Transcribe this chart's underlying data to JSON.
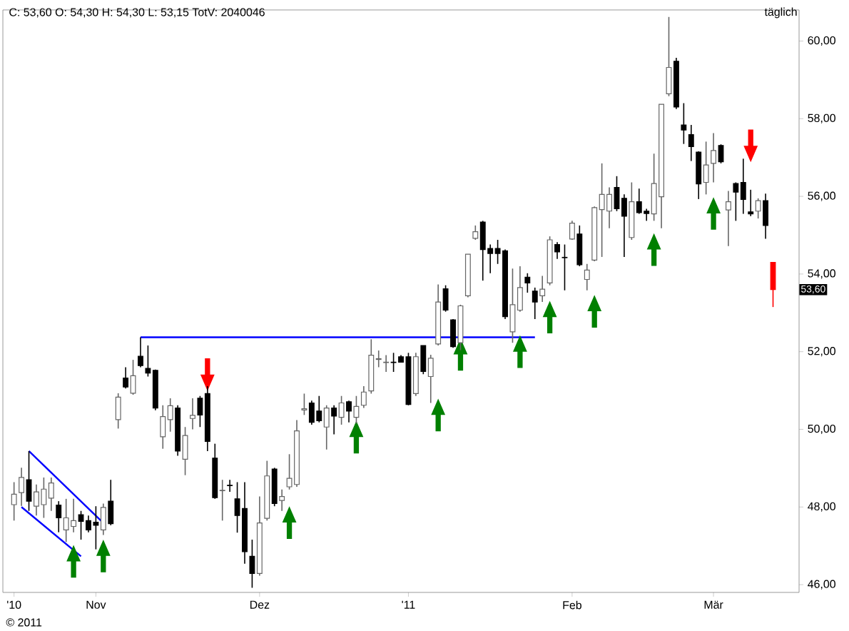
{
  "chart_data": {
    "type": "candlestick",
    "title": "C: 53,60 O: 54,30 H: 54,30 L: 53,15 TotV: 2040046",
    "annotations": [
      "täglich",
      "© 2011",
      "53,60"
    ],
    "categories": [
      "'10",
      null,
      null,
      null,
      null,
      null,
      null,
      null,
      null,
      null,
      null,
      "Nov",
      null,
      null,
      null,
      null,
      null,
      null,
      null,
      null,
      null,
      null,
      null,
      null,
      null,
      null,
      null,
      null,
      null,
      null,
      null,
      null,
      null,
      "Dez",
      null,
      null,
      null,
      null,
      null,
      null,
      null,
      null,
      null,
      null,
      null,
      null,
      null,
      null,
      null,
      null,
      null,
      null,
      null,
      "'11",
      null,
      null,
      null,
      null,
      null,
      null,
      null,
      null,
      null,
      null,
      null,
      null,
      null,
      null,
      null,
      null,
      null,
      null,
      null,
      null,
      null,
      "Feb",
      null,
      null,
      null,
      null,
      null,
      null,
      null,
      null,
      null,
      null,
      null,
      null,
      null,
      null,
      null,
      null,
      null,
      null,
      "Mär",
      null,
      null,
      null,
      null,
      null,
      null,
      null,
      null
    ],
    "ohlc": [
      [
        48.06,
        48.64,
        47.65,
        48.33
      ],
      [
        48.37,
        49.01,
        48.03,
        48.76
      ],
      [
        48.7,
        49.44,
        47.9,
        48.15
      ],
      [
        48.02,
        48.58,
        47.78,
        48.39
      ],
      [
        48.06,
        48.76,
        47.72,
        48.46
      ],
      [
        48.23,
        48.76,
        47.9,
        48.62
      ],
      [
        48.05,
        48.15,
        47.35,
        47.72
      ],
      [
        47.41,
        48.21,
        47.1,
        47.72
      ],
      [
        47.5,
        48.21,
        47.35,
        47.65
      ],
      [
        47.8,
        47.9,
        47.16,
        47.63
      ],
      [
        47.65,
        47.78,
        47.35,
        47.41
      ],
      [
        47.61,
        48.02,
        46.91,
        47.53
      ],
      [
        47.41,
        48.09,
        47.28,
        47.99
      ],
      [
        48.15,
        48.7,
        47.53,
        47.57
      ],
      [
        50.25,
        50.93,
        50.02,
        50.83
      ],
      [
        51.32,
        51.6,
        51.05,
        51.09
      ],
      [
        50.93,
        51.79,
        50.89,
        51.38
      ],
      [
        51.88,
        52.37,
        51.6,
        51.64
      ],
      [
        51.57,
        52.16,
        51.36,
        51.45
      ],
      [
        51.52,
        51.54,
        50.49,
        50.55
      ],
      [
        49.81,
        50.62,
        49.5,
        50.33
      ],
      [
        50.25,
        50.8,
        49.94,
        50.61
      ],
      [
        50.55,
        50.62,
        49.32,
        49.44
      ],
      [
        49.23,
        50.06,
        48.82,
        49.84
      ],
      [
        50.28,
        50.8,
        50.0,
        50.36
      ],
      [
        50.8,
        50.86,
        50.06,
        50.37
      ],
      [
        50.92,
        51.11,
        49.44,
        49.69
      ],
      [
        49.26,
        49.63,
        48.21,
        48.24
      ],
      [
        48.42,
        48.7,
        47.65,
        48.43
      ],
      [
        48.56,
        48.7,
        48.39,
        48.55
      ],
      [
        48.21,
        48.64,
        47.34,
        47.78
      ],
      [
        47.96,
        48.64,
        46.54,
        46.85
      ],
      [
        46.73,
        47.16,
        45.92,
        46.29
      ],
      [
        46.29,
        48.27,
        46.23,
        47.59
      ],
      [
        47.71,
        49.19,
        47.65,
        48.8
      ],
      [
        48.98,
        49.01,
        48.02,
        48.09
      ],
      [
        48.17,
        48.45,
        47.9,
        48.27
      ],
      [
        48.52,
        49.36,
        48.45,
        48.74
      ],
      [
        48.58,
        50.24,
        48.52,
        49.96
      ],
      [
        50.5,
        50.92,
        50.37,
        50.53
      ],
      [
        50.68,
        50.74,
        50.12,
        50.18
      ],
      [
        50.47,
        50.86,
        50.18,
        50.22
      ],
      [
        50.06,
        50.62,
        49.48,
        50.55
      ],
      [
        50.55,
        50.62,
        49.87,
        50.34
      ],
      [
        50.31,
        50.86,
        50.12,
        50.68
      ],
      [
        50.71,
        50.74,
        50.18,
        50.47
      ],
      [
        50.31,
        50.86,
        50.15,
        50.59
      ],
      [
        50.62,
        51.11,
        50.55,
        50.96
      ],
      [
        50.99,
        52.32,
        50.92,
        51.91
      ],
      [
        51.8,
        52.03,
        51.6,
        51.82
      ],
      [
        51.72,
        51.91,
        51.48,
        51.73
      ],
      [
        51.73,
        51.97,
        51.48,
        51.72
      ],
      [
        51.87,
        51.91,
        51.73,
        51.73
      ],
      [
        51.87,
        51.97,
        50.62,
        50.64
      ],
      [
        50.92,
        51.97,
        50.86,
        51.87
      ],
      [
        52.16,
        52.16,
        51.42,
        51.49
      ],
      [
        51.36,
        51.92,
        50.68,
        51.83
      ],
      [
        52.2,
        53.73,
        52.16,
        53.28
      ],
      [
        53.62,
        53.71,
        53.03,
        53.07
      ],
      [
        52.82,
        52.84,
        52.1,
        52.13
      ],
      [
        52.23,
        53.21,
        52.04,
        53.18
      ],
      [
        53.44,
        54.51,
        53.4,
        54.51
      ],
      [
        54.92,
        55.25,
        54.88,
        55.09
      ],
      [
        55.34,
        55.37,
        53.83,
        54.63
      ],
      [
        54.66,
        54.76,
        54.02,
        54.53
      ],
      [
        54.66,
        54.88,
        54.26,
        54.53
      ],
      [
        54.6,
        54.63,
        52.84,
        52.9
      ],
      [
        52.51,
        54.14,
        52.23,
        53.21
      ],
      [
        53.07,
        54.2,
        53.03,
        53.65
      ],
      [
        53.92,
        54.02,
        53.52,
        53.77
      ],
      [
        53.56,
        53.65,
        52.84,
        53.28
      ],
      [
        53.44,
        53.95,
        53.28,
        53.61
      ],
      [
        53.77,
        54.97,
        53.71,
        54.88
      ],
      [
        54.76,
        54.82,
        54.39,
        54.57
      ],
      [
        54.43,
        54.76,
        53.58,
        54.42
      ],
      [
        54.9,
        55.37,
        54.88,
        55.31
      ],
      [
        55.03,
        55.25,
        54.2,
        54.24
      ],
      [
        53.86,
        54.26,
        53.58,
        54.1
      ],
      [
        54.36,
        55.74,
        54.33,
        55.71
      ],
      [
        55.66,
        56.85,
        54.44,
        56.05
      ],
      [
        55.62,
        56.23,
        55.18,
        56.05
      ],
      [
        56.23,
        56.52,
        55.62,
        55.68
      ],
      [
        55.95,
        56.05,
        54.44,
        55.49
      ],
      [
        54.94,
        56.36,
        54.88,
        55.86
      ],
      [
        55.86,
        56.2,
        55.55,
        55.58
      ],
      [
        55.62,
        55.68,
        55.37,
        55.56
      ],
      [
        55.55,
        57.1,
        55.37,
        56.33
      ],
      [
        55.99,
        58.37,
        55.18,
        58.37
      ],
      [
        58.64,
        60.62,
        58.58,
        59.32
      ],
      [
        59.48,
        59.57,
        58.25,
        58.3
      ],
      [
        57.84,
        58.4,
        57.35,
        57.71
      ],
      [
        57.59,
        57.84,
        56.91,
        57.28
      ],
      [
        57.14,
        57.16,
        55.93,
        56.32
      ],
      [
        56.36,
        57.41,
        56.05,
        56.81
      ],
      [
        56.85,
        57.63,
        56.36,
        57.18
      ],
      [
        57.31,
        57.34,
        56.85,
        56.89
      ],
      [
        55.65,
        56.14,
        54.72,
        55.86
      ],
      [
        56.33,
        56.36,
        55.37,
        56.11
      ],
      [
        56.36,
        56.97,
        55.55,
        55.92
      ],
      [
        55.6,
        56.17,
        55.49,
        55.55
      ],
      [
        55.62,
        55.95,
        55.43,
        55.89
      ],
      [
        55.89,
        56.07,
        54.91,
        55.25
      ],
      [
        54.3,
        54.3,
        53.15,
        53.6
      ]
    ],
    "colors": [
      "#ffffff",
      "#ffffff",
      "#000000",
      "#ffffff",
      "#ffffff",
      "#ffffff",
      "#000000",
      "#ffffff",
      "#ffffff",
      "#000000",
      "#000000",
      "#000000",
      "#ffffff",
      "#000000",
      "#ffffff",
      "#000000",
      "#ffffff",
      "#000000",
      "#000000",
      "#000000",
      "#ffffff",
      "#ffffff",
      "#000000",
      "#ffffff",
      "#ffffff",
      "#000000",
      "#000000",
      "#000000",
      "#ffffff",
      "#000000",
      "#000000",
      "#000000",
      "#000000",
      "#ffffff",
      "#ffffff",
      "#000000",
      "#ffffff",
      "#ffffff",
      "#ffffff",
      "#ffffff",
      "#000000",
      "#000000",
      "#ffffff",
      "#000000",
      "#ffffff",
      "#000000",
      "#ffffff",
      "#ffffff",
      "#ffffff",
      "#ffffff",
      "#ffffff",
      "#000000",
      "#000000",
      "#000000",
      "#ffffff",
      "#000000",
      "#ffffff",
      "#ffffff",
      "#000000",
      "#000000",
      "#ffffff",
      "#ffffff",
      "#ffffff",
      "#000000",
      "#000000",
      "#000000",
      "#000000",
      "#ffffff",
      "#ffffff",
      "#000000",
      "#000000",
      "#ffffff",
      "#ffffff",
      "#000000",
      "#000000",
      "#ffffff",
      "#000000",
      "#ffffff",
      "#ffffff",
      "#ffffff",
      "#ffffff",
      "#000000",
      "#000000",
      "#ffffff",
      "#000000",
      "#000000",
      "#ffffff",
      "#ffffff",
      "#ffffff",
      "#000000",
      "#000000",
      "#000000",
      "#000000",
      "#ffffff",
      "#ffffff",
      "#000000",
      "#ffffff",
      "#000000",
      "#000000",
      "#000000",
      "#ffffff",
      "#000000",
      "#ff0000"
    ],
    "series": [
      {
        "type": "line",
        "color": "#0000ff",
        "values": [
          null,
          null,
          null,
          null,
          null,
          null,
          null,
          null,
          null,
          null,
          null,
          null,
          null,
          null,
          null,
          null,
          null,
          52.37,
          null,
          null,
          null,
          null,
          null,
          null,
          null,
          null,
          null,
          null,
          null,
          null,
          null,
          null,
          null,
          null,
          null,
          null,
          null,
          null,
          null,
          null,
          null,
          null,
          null,
          null,
          null,
          null,
          null,
          null,
          null,
          null,
          null,
          null,
          null,
          null,
          null,
          null,
          null,
          null,
          null,
          null,
          null,
          null,
          null,
          null,
          null,
          null,
          null,
          null,
          null,
          null,
          52.37,
          null,
          null,
          null,
          null,
          null,
          null,
          null,
          null,
          null,
          null,
          null,
          null,
          null,
          null,
          null,
          null,
          null,
          null,
          null,
          null,
          null,
          null,
          null,
          null,
          null,
          null,
          null,
          null,
          null,
          null,
          null,
          null
        ]
      },
      {
        "type": "line",
        "color": "#0000ff",
        "values": [
          null,
          null,
          49.44,
          null,
          null,
          null,
          null,
          null,
          null,
          null,
          null,
          null,
          47.59,
          null,
          null,
          null,
          null,
          null,
          null,
          null,
          null,
          null,
          null,
          null,
          null,
          null,
          null,
          null,
          null,
          null,
          null,
          null,
          null,
          null,
          null,
          null,
          null,
          null,
          null,
          null,
          null,
          null,
          null,
          null,
          null,
          null,
          null,
          null,
          null,
          null,
          null,
          null,
          null,
          null,
          null,
          null,
          null,
          null,
          null,
          null,
          null,
          null,
          null,
          null,
          null,
          null,
          null,
          null,
          null,
          null,
          null,
          null,
          null,
          null,
          null,
          null,
          null,
          null,
          null,
          null,
          null,
          null,
          null,
          null,
          null,
          null,
          null,
          null,
          null,
          null,
          null,
          null,
          null,
          null,
          null,
          null,
          null,
          null,
          null,
          null,
          null,
          null,
          null
        ]
      },
      {
        "type": "line",
        "color": "#0000ff",
        "values": [
          null,
          48.0,
          null,
          null,
          null,
          null,
          null,
          null,
          null,
          46.73,
          null,
          null,
          null,
          null,
          null,
          null,
          null,
          null,
          null,
          null,
          null,
          null,
          null,
          null,
          null,
          null,
          null,
          null,
          null,
          null,
          null,
          null,
          null,
          null,
          null,
          null,
          null,
          null,
          null,
          null,
          null,
          null,
          null,
          null,
          null,
          null,
          null,
          null,
          null,
          null,
          null,
          null,
          null,
          null,
          null,
          null,
          null,
          null,
          null,
          null,
          null,
          null,
          null,
          null,
          null,
          null,
          null,
          null,
          null,
          null,
          null,
          null,
          null,
          null,
          null,
          null,
          null,
          null,
          null,
          null,
          null,
          null,
          null,
          null,
          null,
          null,
          null,
          null,
          null,
          null,
          null,
          null,
          null,
          null,
          null,
          null,
          null,
          null,
          null,
          null,
          null,
          null,
          null
        ]
      },
      {
        "type": "scatter",
        "marker": "triangle",
        "color": "#008000",
        "values": [
          null,
          null,
          null,
          null,
          null,
          null,
          null,
          null,
          46.6,
          null,
          null,
          null,
          46.74,
          null,
          null,
          null,
          null,
          null,
          null,
          null,
          null,
          null,
          null,
          null,
          null,
          null,
          null,
          null,
          null,
          null,
          null,
          null,
          null,
          null,
          null,
          null,
          null,
          47.6,
          null,
          null,
          null,
          null,
          null,
          null,
          null,
          null,
          49.8,
          null,
          null,
          null,
          null,
          null,
          null,
          null,
          null,
          null,
          null,
          50.37,
          null,
          null,
          51.93,
          null,
          null,
          null,
          null,
          null,
          null,
          null,
          52.0,
          null,
          null,
          null,
          52.89,
          null,
          null,
          null,
          null,
          null,
          53.04,
          null,
          null,
          null,
          null,
          null,
          null,
          null,
          54.63,
          null,
          null,
          null,
          null,
          null,
          null,
          null,
          55.56,
          null,
          null,
          null,
          null,
          null,
          null,
          null,
          null
        ]
      },
      {
        "type": "scatter",
        "marker": "triangle",
        "color": "#ff0000",
        "values": [
          null,
          null,
          null,
          null,
          null,
          null,
          null,
          null,
          null,
          null,
          null,
          null,
          null,
          null,
          null,
          null,
          null,
          null,
          null,
          null,
          null,
          null,
          null,
          null,
          null,
          null,
          51.41,
          null,
          null,
          null,
          null,
          null,
          null,
          null,
          null,
          null,
          null,
          null,
          null,
          null,
          null,
          null,
          null,
          null,
          null,
          null,
          null,
          null,
          null,
          null,
          null,
          null,
          null,
          null,
          null,
          null,
          null,
          null,
          null,
          null,
          null,
          null,
          null,
          null,
          null,
          null,
          null,
          null,
          null,
          null,
          null,
          null,
          null,
          null,
          null,
          null,
          null,
          null,
          null,
          null,
          null,
          null,
          null,
          null,
          null,
          null,
          null,
          null,
          null,
          null,
          null,
          null,
          null,
          null,
          null,
          null,
          null,
          null,
          null,
          57.3,
          null,
          null,
          null
        ]
      }
    ],
    "ylim": [
      45.8,
      60.8
    ],
    "yticks": [
      {
        "value": 46,
        "label": "46,00"
      },
      {
        "value": 48,
        "label": "48,00"
      },
      {
        "value": 50,
        "label": "50,00"
      },
      {
        "value": 52,
        "label": "52,00"
      },
      {
        "value": 54,
        "label": "54,00"
      },
      {
        "value": 56,
        "label": "56,00"
      },
      {
        "value": 58,
        "label": "58,00"
      },
      {
        "value": 60,
        "label": "60,00"
      }
    ]
  }
}
